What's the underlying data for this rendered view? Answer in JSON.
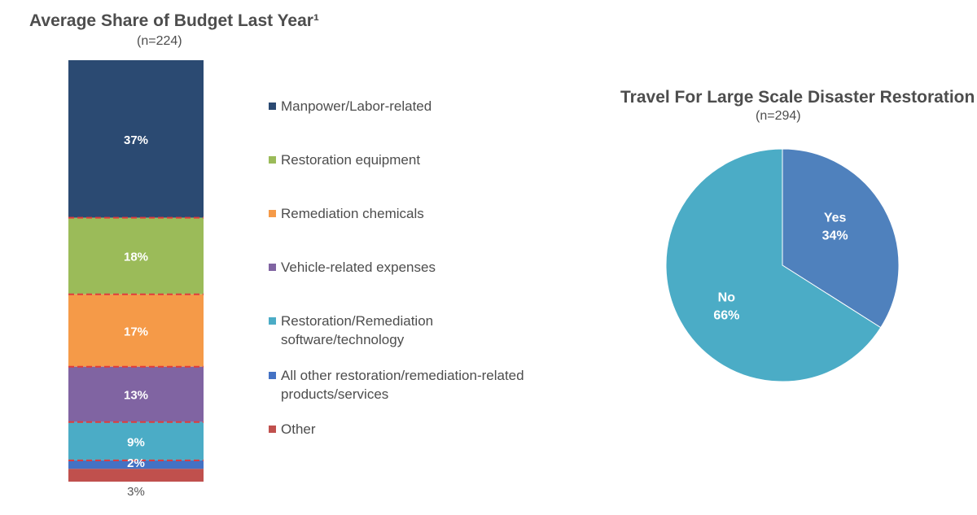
{
  "stacked_chart": {
    "title": "Average Share of Budget Last Year¹",
    "subtitle": "(n=224)"
  },
  "pie_chart": {
    "title": "Travel For Large Scale Disaster Restoration",
    "subtitle": "(n=294)"
  },
  "chart_data": [
    {
      "type": "bar",
      "stacked": true,
      "title": "Average Share of Budget Last Year¹",
      "subtitle": "(n=224)",
      "categories": [
        "Manpower/Labor-related",
        "Restoration equipment",
        "Remediation chemicals",
        "Vehicle-related expenses",
        "Restoration/Remediation software/technology",
        "All other restoration/remediation-related products/services",
        "Other"
      ],
      "values": [
        37,
        18,
        17,
        13,
        9,
        2,
        3
      ],
      "labels": [
        "37%",
        "18%",
        "17%",
        "13%",
        "9%",
        "2%",
        "3%"
      ],
      "colors": [
        "#2b4a72",
        "#9bbb59",
        "#f59a48",
        "#8064a2",
        "#4bacc6",
        "#4472c4",
        "#c0504d"
      ],
      "label_colors": [
        "#ffffff",
        "#ffffff",
        "#ffffff",
        "#ffffff",
        "#ffffff",
        "#ffffff",
        "#555555"
      ],
      "separator_color": "#e03c3c",
      "legend_position": "right"
    },
    {
      "type": "pie",
      "title": "Travel For Large Scale Disaster Restoration",
      "subtitle": "(n=294)",
      "slices": [
        {
          "category": "Yes",
          "value": 34,
          "label": "34%",
          "color": "#4f81bd"
        },
        {
          "category": "No",
          "value": 66,
          "label": "66%",
          "color": "#4bacc6"
        }
      ]
    }
  ]
}
